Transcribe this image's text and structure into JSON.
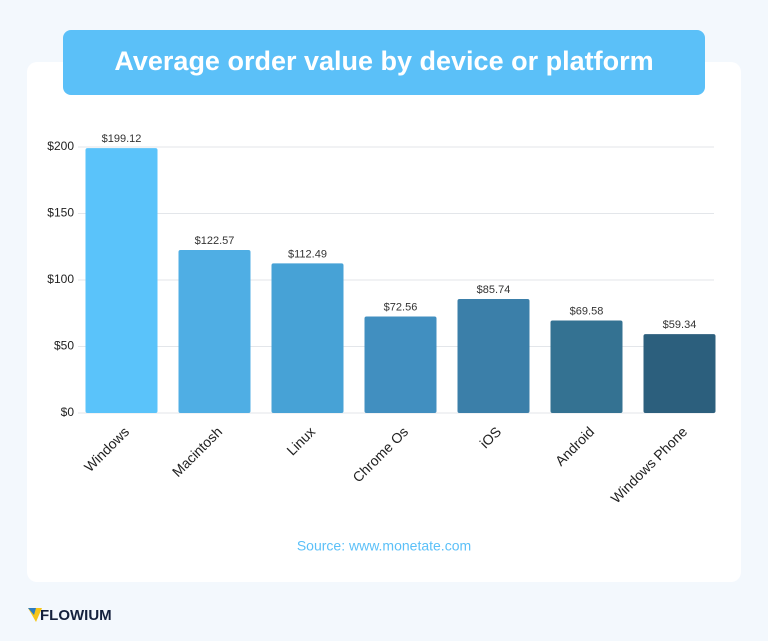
{
  "chart_data": {
    "type": "bar",
    "title": "Average order value by device or platform",
    "categories": [
      "Windows",
      "Macintosh",
      "Linux",
      "Chrome Os",
      "iOS",
      "Android",
      "Windows Phone"
    ],
    "values": [
      199.12,
      122.57,
      112.49,
      72.56,
      85.74,
      69.58,
      59.34
    ],
    "value_labels": [
      "$199.12",
      "$122.57",
      "$112.49",
      "$72.56",
      "$85.74",
      "$69.58",
      "$59.34"
    ],
    "colors": [
      "#5ac3fa",
      "#4faee4",
      "#47a2d6",
      "#418fc0",
      "#3b7fa9",
      "#347292",
      "#2c5f7d"
    ],
    "ylim": [
      0,
      200
    ],
    "yticks": [
      {
        "value": 0,
        "label": "$0"
      },
      {
        "value": 50,
        "label": "$50"
      },
      {
        "value": 100,
        "label": "$100"
      },
      {
        "value": 150,
        "label": "$150"
      },
      {
        "value": 200,
        "label": "$200"
      }
    ],
    "grid": true,
    "source": "Source: www.monetate.com"
  },
  "brand": "FLOWIUM"
}
